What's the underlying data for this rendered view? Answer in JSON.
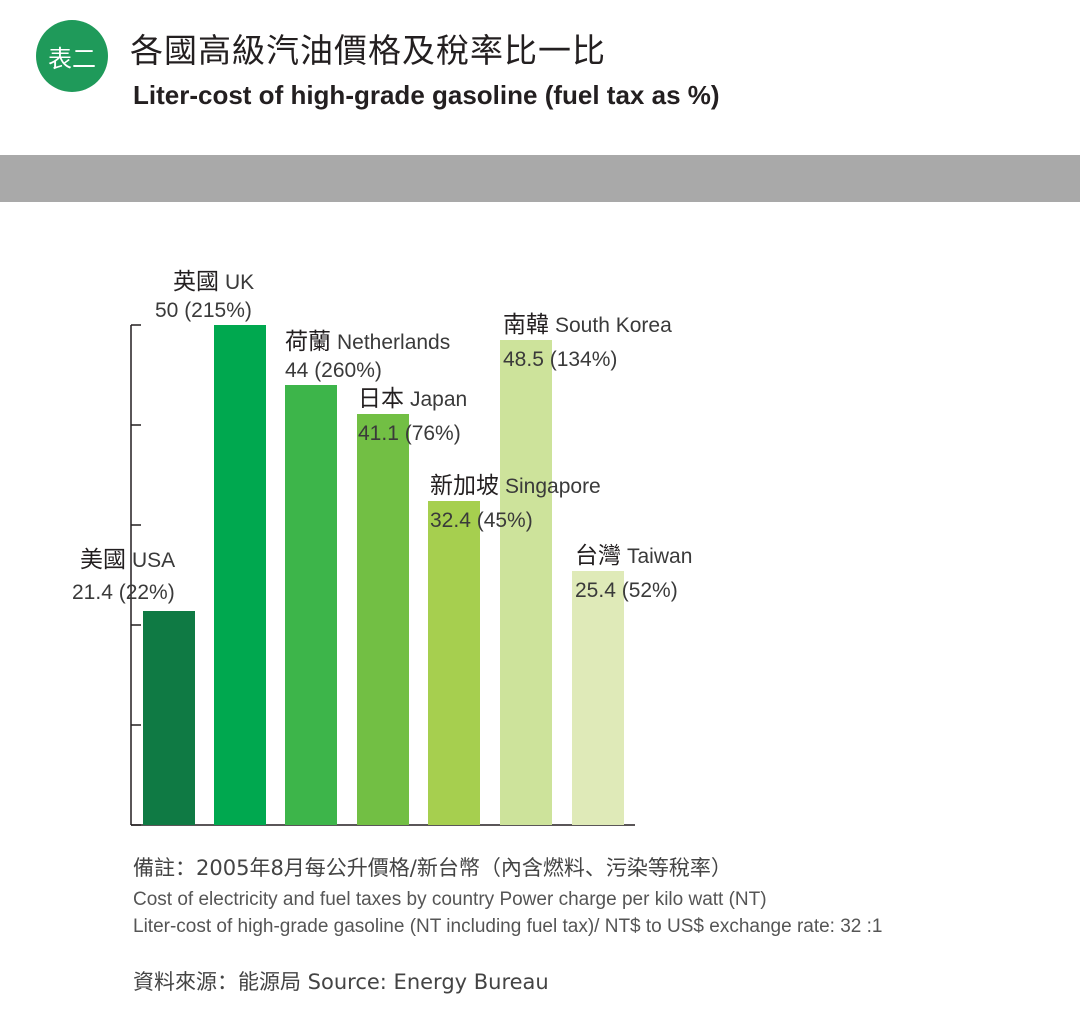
{
  "header": {
    "badge": "表二",
    "title": "各國高級汽油價格及稅率比一比",
    "subtitle": "Liter-cost of high-grade gasoline (fuel tax as %)"
  },
  "colors": {
    "badge": "#1f9a5a",
    "band": "#a9a9a9",
    "bars": [
      "#0f7a44",
      "#00a84f",
      "#3db54a",
      "#72bf44",
      "#a6cf4f",
      "#cde39b",
      "#dfeab8"
    ]
  },
  "chart_data": {
    "type": "bar",
    "title": "Liter-cost of high-grade gasoline (fuel tax as %)",
    "ylim": [
      0,
      50
    ],
    "grid": false,
    "categories": [
      "美國 USA",
      "英國 UK",
      "荷蘭 Netherlands",
      "日本 Japan",
      "新加坡 Singapore",
      "南韓 South Korea",
      "台灣 Taiwan"
    ],
    "items": [
      {
        "zh": "美國",
        "en": "USA",
        "value": 21.4,
        "tax": "(22%)",
        "value_label": "21.4"
      },
      {
        "zh": "英國",
        "en": "UK",
        "value": 50,
        "tax": "(215%)",
        "value_label": "50"
      },
      {
        "zh": "荷蘭",
        "en": "Netherlands",
        "value": 44,
        "tax": "(260%)",
        "value_label": "44"
      },
      {
        "zh": "日本",
        "en": "Japan",
        "value": 41.1,
        "tax": "(76%)",
        "value_label": "41.1"
      },
      {
        "zh": "新加坡",
        "en": "Singapore",
        "value": 32.4,
        "tax": "(45%)",
        "value_label": "32.4"
      },
      {
        "zh": "南韓",
        "en": "South Korea",
        "value": 48.5,
        "tax": "(134%)",
        "value_label": "48.5"
      },
      {
        "zh": "台灣",
        "en": "Taiwan",
        "value": 25.4,
        "tax": "(52%)",
        "value_label": "25.4"
      }
    ]
  },
  "notes": {
    "main": "備註：2005年8月每公升價格/新台幣（內含燃料、污染等稅率）",
    "line1": "Cost of electricity and fuel taxes by country Power charge per kilo watt (NT)",
    "line2": "Liter-cost of high-grade gasoline (NT including fuel tax)/ NT$ to US$ exchange rate: 32  :1"
  },
  "source": "資料來源：能源局  Source: Energy Bureau"
}
